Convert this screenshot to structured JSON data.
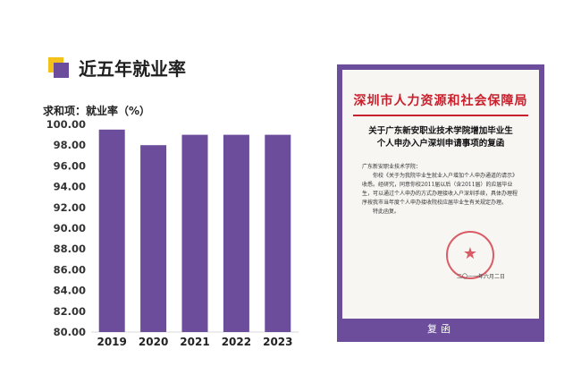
{
  "section": {
    "title": "近五年就业率"
  },
  "chart_data": {
    "type": "bar",
    "title": "",
    "ylabel": "求和项：就业率（%）",
    "xlabel": "",
    "categories": [
      "2019",
      "2020",
      "2021",
      "2022",
      "2023"
    ],
    "values": [
      99.5,
      98.0,
      99.0,
      99.0,
      99.0
    ],
    "ylim": [
      80,
      100
    ],
    "yticks": [
      "80.00",
      "82.00",
      "84.00",
      "86.00",
      "88.00",
      "90.00",
      "92.00",
      "94.00",
      "96.00",
      "98.00",
      "100.00"
    ],
    "grid": false,
    "legend": "none",
    "bar_color": "#6b4d9c"
  },
  "document": {
    "org_header": "深圳市人力资源和社会保障局",
    "subject_lines": [
      "关于广东新安职业技术学院增加毕业生",
      "个人申办入户深圳申请事项的复函"
    ],
    "salutation": "广东新安职业技术学院：",
    "body": "你校《关于为我院毕业生就业入户增加个人申办通道的请示》收悉。经研究，同意你校2011届以后（含2011届）的应届毕业生，可以通过个人申办的方式办理接收入户深圳手续，具体办理程序按我市当年度个人申办接收院校应届毕业生有关规定办理。",
    "closing": "特此函复。",
    "date": "二〇一一年六月二日",
    "caption": "复函",
    "accent_color": "#c8202c",
    "frame_color": "#6b4d9c"
  }
}
